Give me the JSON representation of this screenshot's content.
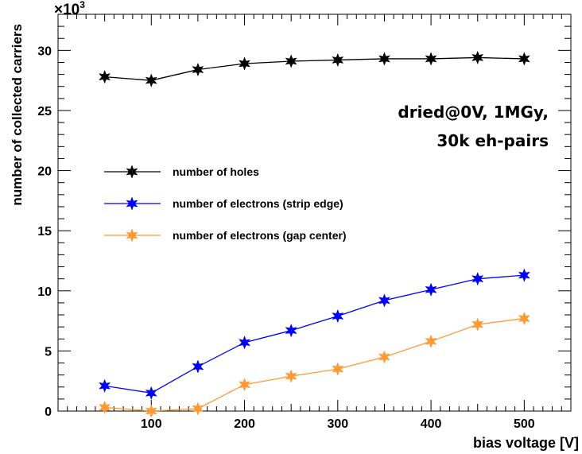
{
  "chart_data": {
    "type": "line",
    "xlabel": "bias voltage [V]",
    "ylabel": "number of collected carriers",
    "y_multiplier": "×10",
    "y_multiplier_exp": "3",
    "xlim": [
      0,
      550
    ],
    "ylim": [
      0,
      33
    ],
    "x_ticks": [
      100,
      200,
      300,
      400,
      500
    ],
    "y_ticks": [
      0,
      5,
      10,
      15,
      20,
      25,
      30
    ],
    "x": [
      50,
      100,
      150,
      200,
      250,
      300,
      350,
      400,
      450,
      500
    ],
    "series": [
      {
        "name": "number of holes",
        "color": "#000000",
        "values": [
          27.8,
          27.5,
          28.4,
          28.9,
          29.1,
          29.2,
          29.3,
          29.3,
          29.4,
          29.3
        ]
      },
      {
        "name": "number of electrons (strip edge)",
        "color": "#0000ff",
        "values": [
          2.1,
          1.5,
          3.7,
          5.7,
          6.7,
          7.9,
          9.2,
          10.1,
          11.0,
          11.3
        ]
      },
      {
        "name": "number of electrons (gap center)",
        "color": "#ff9933",
        "values": [
          0.3,
          0.0,
          0.2,
          2.2,
          2.9,
          3.5,
          4.5,
          5.8,
          7.2,
          7.7
        ]
      }
    ],
    "annotations": [
      "dried@0V, 1MGy,",
      "30k eh-pairs"
    ],
    "legend_position": "center-left",
    "grid": false
  }
}
